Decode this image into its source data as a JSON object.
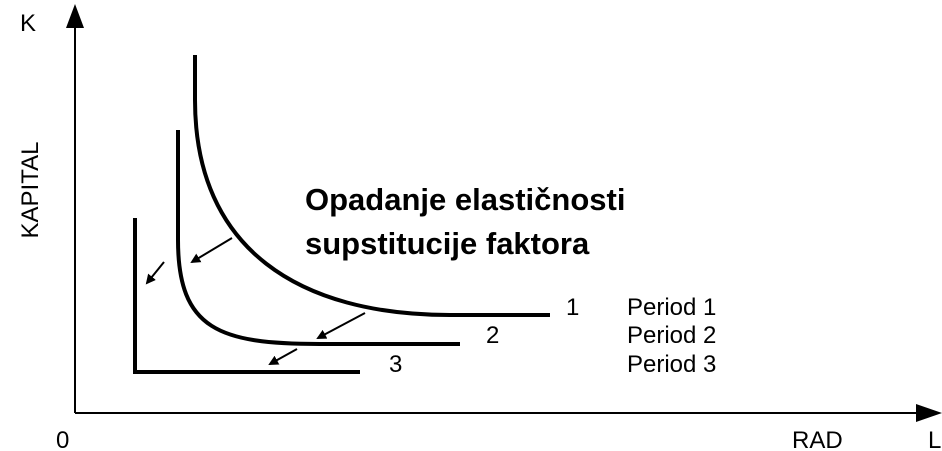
{
  "axes": {
    "y_symbol": "K",
    "x_symbol": "L",
    "y_label": "KAPITAL",
    "x_label": "RAD",
    "origin": "0"
  },
  "title": [
    "Opadanje elastičnosti",
    "supstitucije faktora"
  ],
  "curves": [
    {
      "label": "1",
      "legend": "Period 1"
    },
    {
      "label": "2",
      "legend": "Period 2"
    },
    {
      "label": "3",
      "legend": "Period 3"
    }
  ]
}
